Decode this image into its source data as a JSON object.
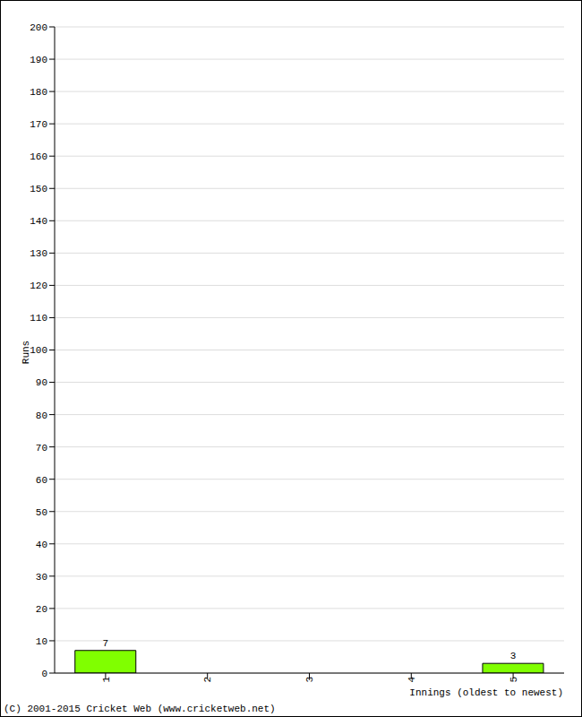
{
  "chart_data": {
    "type": "bar",
    "categories": [
      "1",
      "2",
      "3",
      "4",
      "5"
    ],
    "values": [
      7,
      0,
      0,
      0,
      3
    ],
    "color": "#80ff00",
    "ylim": [
      0,
      200
    ],
    "yticks": [
      0,
      10,
      20,
      30,
      40,
      50,
      60,
      70,
      80,
      90,
      100,
      110,
      120,
      130,
      140,
      150,
      160,
      170,
      180,
      190,
      200
    ],
    "grid": true,
    "data_labels": true,
    "x_label": "Innings (oldest to newest)",
    "y_label": "Runs",
    "annotations": [
      "(C) 2001-2015 Cricket Web (www.cricketweb.net)"
    ]
  }
}
